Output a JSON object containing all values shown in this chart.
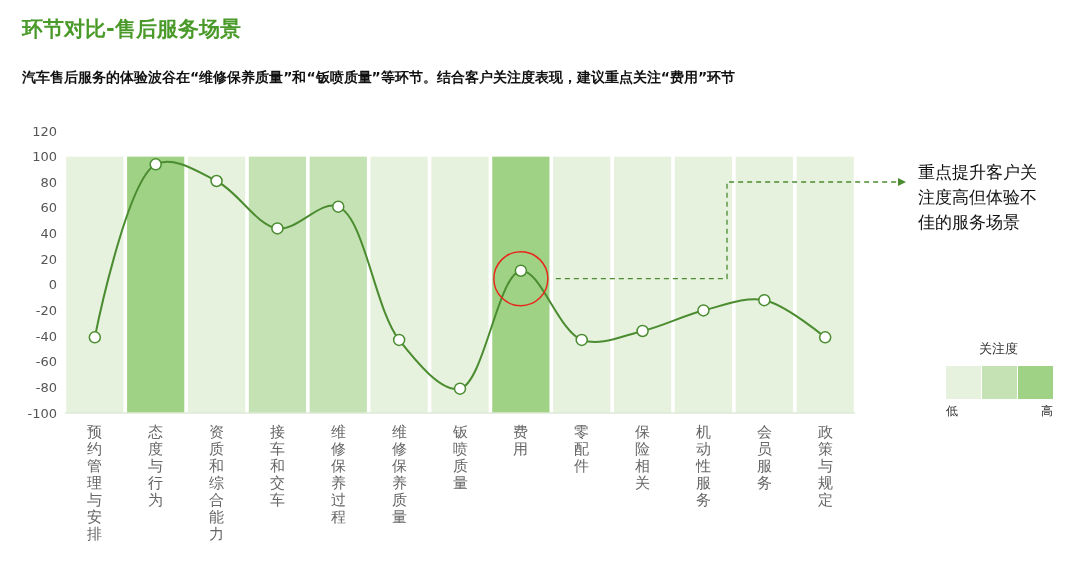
{
  "chart_data": {
    "type": "line",
    "title": "环节对比-售后服务场景",
    "subtitle": "汽车售后服务的体验波谷在“维修保养质量”和“钣喷质量”等环节。结合客户关注度表现，建议重点关注“费用”环节",
    "categories": [
      "预约管理与安排",
      "态度与行为",
      "资质和综合能力",
      "接车和交车",
      "维修保养过程",
      "维修保养质量",
      "钣喷质量",
      "费用",
      "零配件",
      "保险相关",
      "机动性服务",
      "会员服务",
      "政策与规定"
    ],
    "series": [
      {
        "type": "bar",
        "base": [
          -100,
          -100,
          -100,
          -100,
          -100,
          -100,
          -100,
          -100,
          -100,
          -100,
          -100,
          -100,
          -100
        ],
        "values": [
          200,
          200,
          200,
          200,
          200,
          200,
          200,
          200,
          200,
          200,
          200,
          200,
          200
        ],
        "colors": [
          "#e6f1de",
          "#a0d285",
          "#e6f1de",
          "#c5e2b4",
          "#c5e2b4",
          "#e6f1de",
          "#e6f1de",
          "#a0d285",
          "#e6f1de",
          "#e6f1de",
          "#e6f1de",
          "#e6f1de",
          "#e6f1de"
        ]
      },
      {
        "color": "#4a8c2f",
        "values": [
          -41,
          94,
          81,
          44,
          61,
          -43,
          -81,
          11,
          -43,
          -36,
          -20,
          -12,
          -41
        ]
      }
    ],
    "ylim": [
      -100,
      120
    ],
    "yticks": [
      -100,
      -80,
      -60,
      -40,
      -20,
      0,
      20,
      40,
      60,
      80,
      100,
      120
    ],
    "marker": "circle",
    "grid": false,
    "legend_title": "关注度",
    "annotations": [
      "重点提升客户关注度高但体验不佳的服务场景",
      "低",
      "高"
    ]
  }
}
